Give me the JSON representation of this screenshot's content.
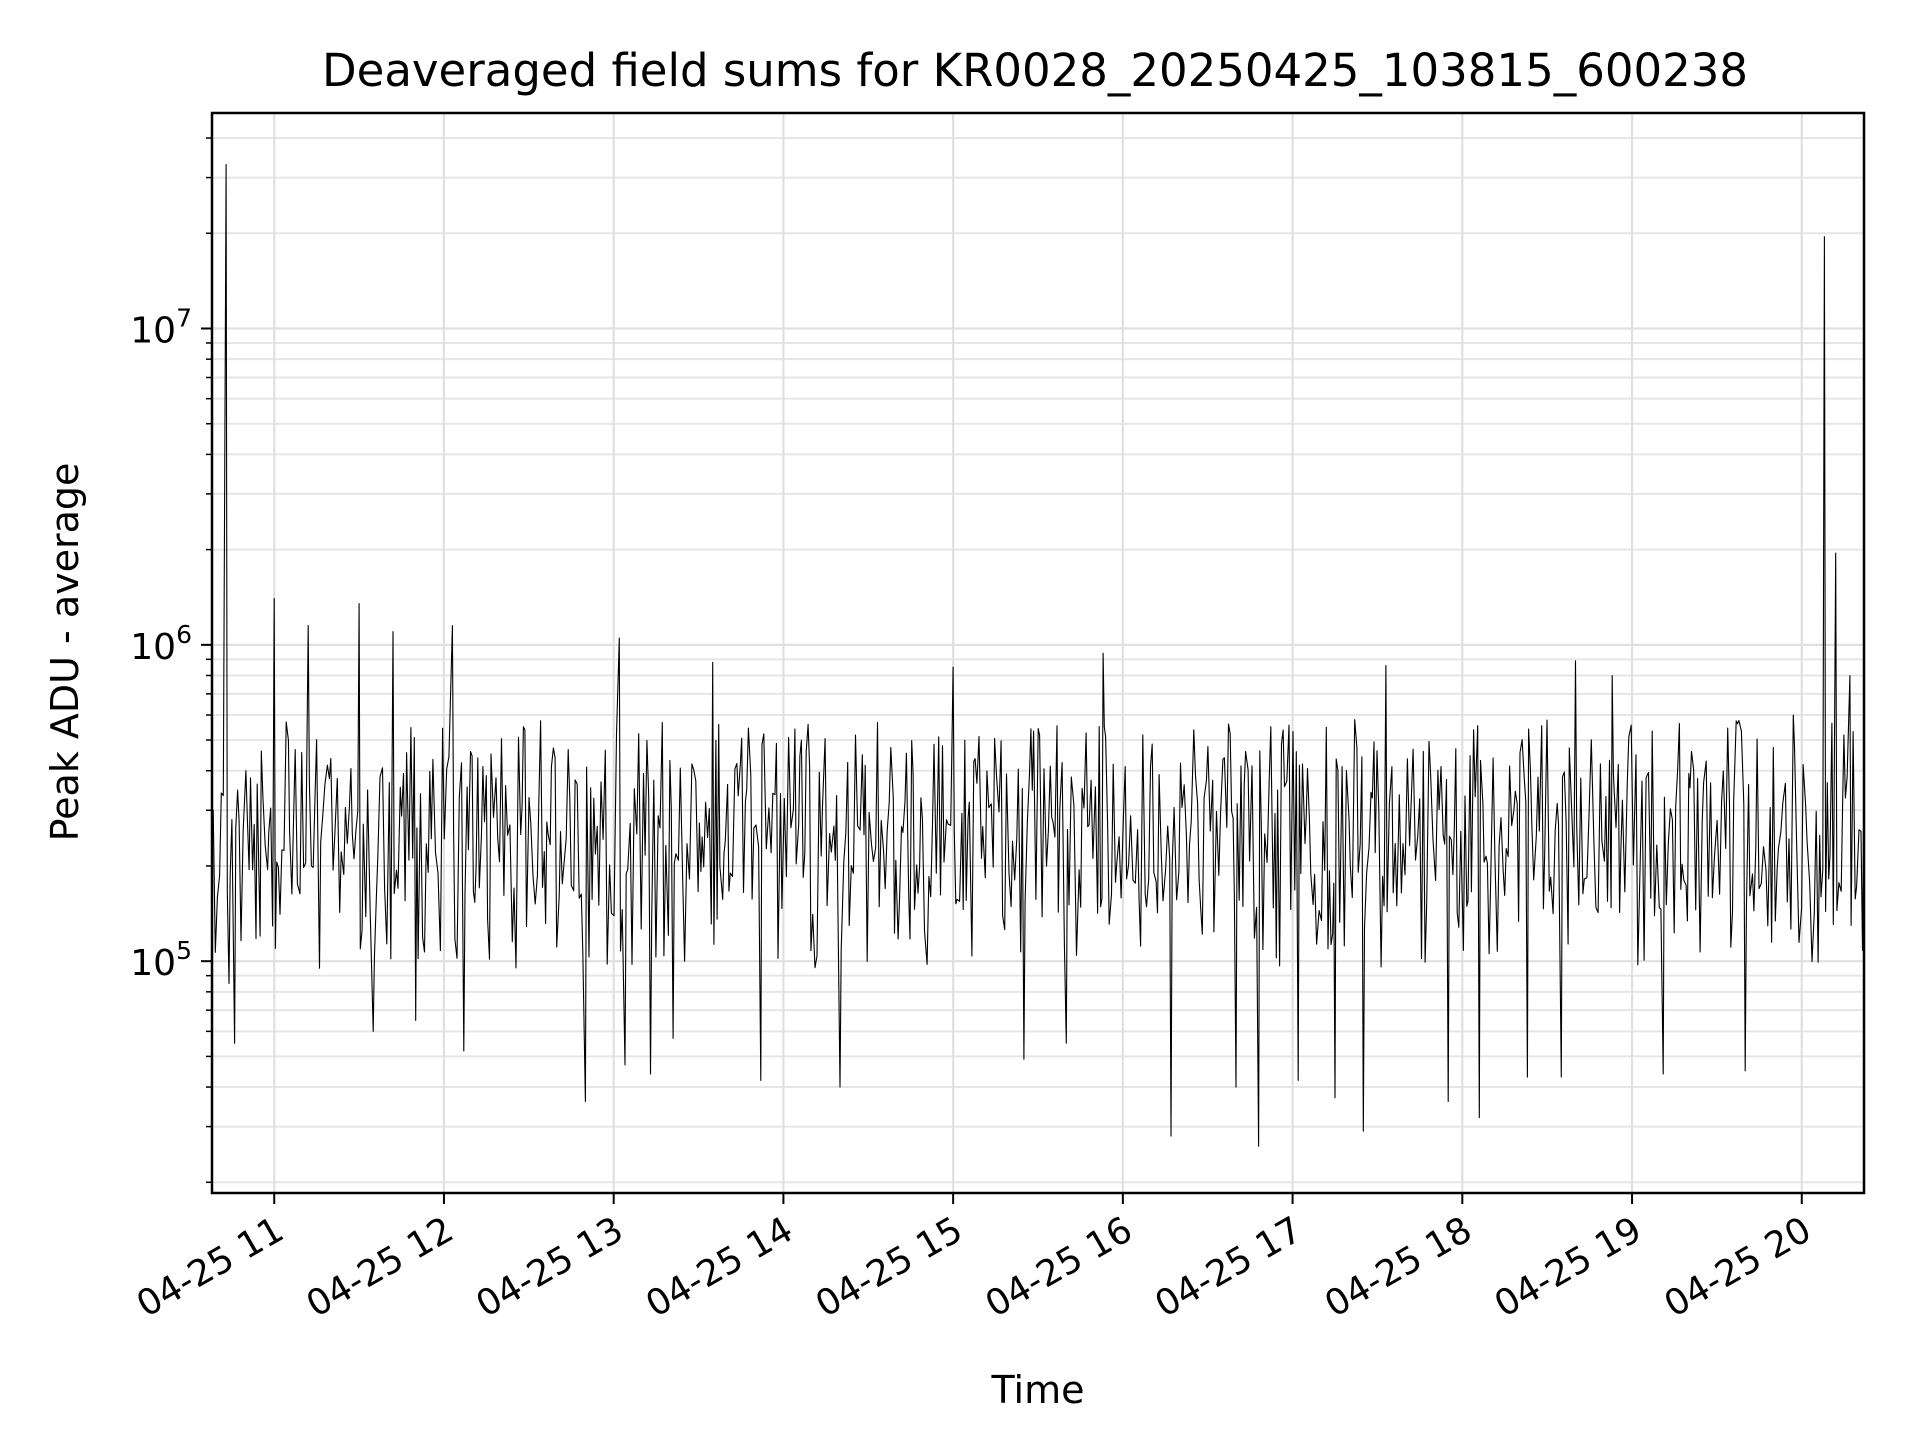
{
  "chart_data": {
    "type": "line",
    "title": "Deaveraged field sums for KR0028_20250425_103815_600238",
    "xlabel": "Time",
    "ylabel": "Peak ADU - average",
    "yscale": "log",
    "grid": true,
    "line_color": "#000000",
    "x_date_prefix": "2025-",
    "x_range": [
      "2025-04-25T10:38",
      "2025-04-25T20:22"
    ],
    "y_range": [
      18500,
      48000000
    ],
    "x_tick_values": [
      "2025-04-25T11:00",
      "2025-04-25T12:00",
      "2025-04-25T13:00",
      "2025-04-25T14:00",
      "2025-04-25T15:00",
      "2025-04-25T16:00",
      "2025-04-25T17:00",
      "2025-04-25T18:00",
      "2025-04-25T19:00",
      "2025-04-25T20:00"
    ],
    "x_tick_labels": [
      "04-25 11",
      "04-25 12",
      "04-25 13",
      "04-25 14",
      "04-25 15",
      "04-25 16",
      "04-25 17",
      "04-25 18",
      "04-25 19",
      "04-25 20"
    ],
    "y_ticks": [
      {
        "value": 100000,
        "base": "10",
        "exp": "5"
      },
      {
        "value": 1000000,
        "base": "10",
        "exp": "6"
      },
      {
        "value": 10000000,
        "base": "10",
        "exp": "7"
      }
    ],
    "series": [
      {
        "points": [
          [
            "2025-04-25T10:38",
            250000
          ],
          [
            "2025-04-25T10:43",
            33000000
          ],
          [
            "2025-04-25T10:44",
            85000
          ],
          [
            "2025-04-25T10:46",
            55000
          ],
          [
            "2025-04-25T10:50",
            400000
          ],
          [
            "2025-04-25T10:55",
            120000
          ],
          [
            "2025-04-25T11:00",
            1400000
          ],
          [
            "2025-04-25T11:05",
            500000
          ],
          [
            "2025-04-25T11:12",
            1150000
          ],
          [
            "2025-04-25T11:16",
            95000
          ],
          [
            "2025-04-25T11:30",
            1350000
          ],
          [
            "2025-04-25T11:35",
            60000
          ],
          [
            "2025-04-25T11:42",
            1100000
          ],
          [
            "2025-04-25T11:50",
            65000
          ],
          [
            "2025-04-25T12:03",
            1150000
          ],
          [
            "2025-04-25T12:07",
            52000
          ],
          [
            "2025-04-25T12:50",
            36000
          ],
          [
            "2025-04-25T13:02",
            1050000
          ],
          [
            "2025-04-25T13:04",
            47000
          ],
          [
            "2025-04-25T13:13",
            44000
          ],
          [
            "2025-04-25T13:21",
            57000
          ],
          [
            "2025-04-25T13:35",
            880000
          ],
          [
            "2025-04-25T13:52",
            42000
          ],
          [
            "2025-04-25T14:20",
            40000
          ],
          [
            "2025-04-25T15:00",
            850000
          ],
          [
            "2025-04-25T15:25",
            49000
          ],
          [
            "2025-04-25T15:40",
            55000
          ],
          [
            "2025-04-25T15:53",
            940000
          ],
          [
            "2025-04-25T16:17",
            28000
          ],
          [
            "2025-04-25T16:40",
            40000
          ],
          [
            "2025-04-25T16:48",
            26000
          ],
          [
            "2025-04-25T17:02",
            42000
          ],
          [
            "2025-04-25T17:15",
            37000
          ],
          [
            "2025-04-25T17:25",
            29000
          ],
          [
            "2025-04-25T17:33",
            860000
          ],
          [
            "2025-04-25T17:55",
            36000
          ],
          [
            "2025-04-25T18:06",
            32000
          ],
          [
            "2025-04-25T18:23",
            43000
          ],
          [
            "2025-04-25T18:35",
            43000
          ],
          [
            "2025-04-25T18:40",
            890000
          ],
          [
            "2025-04-25T18:53",
            800000
          ],
          [
            "2025-04-25T19:11",
            44000
          ],
          [
            "2025-04-25T19:40",
            45000
          ],
          [
            "2025-04-25T19:57",
            600000
          ],
          [
            "2025-04-25T20:08",
            19500000
          ],
          [
            "2025-04-25T20:12",
            1950000
          ],
          [
            "2025-04-25T20:17",
            800000
          ],
          [
            "2025-04-25T20:22",
            430000
          ]
        ]
      }
    ]
  }
}
